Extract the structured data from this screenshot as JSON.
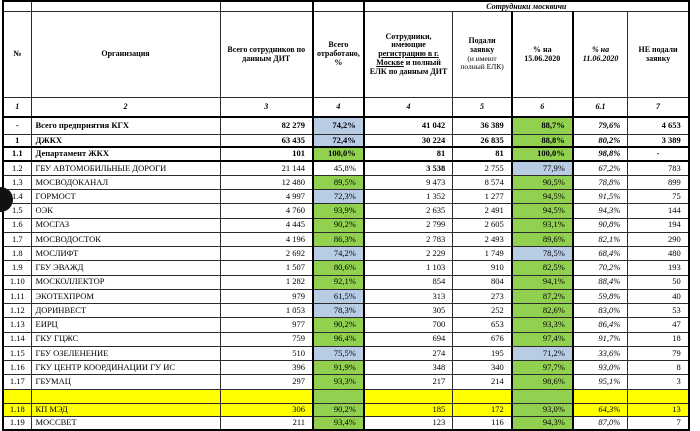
{
  "table": {
    "group_header": "Сотрудники москвичи",
    "columns": {
      "num": "№",
      "org": "Организация",
      "total": "Всего сотрудников по данным ДИТ",
      "worked": "Всего отработано, %",
      "msk_part1": "Сотрудники, имеющие ",
      "msk_underlined": "регистрацию в г. Москве",
      "msk_part2": " и полный ЕЛК по данным ДИТ",
      "applied_main": "Подали заявку",
      "applied_sub": "(и имеют полный ЕЛК)",
      "pct15": "% на 15.06.2020",
      "pct11": "% на 11.06.2020",
      "not_applied": "НЕ подали заявку"
    },
    "numbering": [
      "1",
      "2",
      "3",
      "4",
      "4",
      "5",
      "6",
      "6.1",
      "7"
    ],
    "rows": [
      {
        "num": "-",
        "org": "Всего предприятия КГХ",
        "total": "82 279",
        "worked": "74,2%",
        "worked_fill": "blue",
        "msk": "41 042",
        "applied": "36 389",
        "pct15": "88,7%",
        "pct15_fill": "green",
        "pct11": "79,6%",
        "not": "4 653",
        "bold": true,
        "height": 17
      },
      {
        "num": "1",
        "org": "ДЖКХ",
        "total": "63 435",
        "worked": "72,4%",
        "worked_fill": "blue",
        "msk": "30 224",
        "applied": "26 835",
        "pct15": "88,8%",
        "pct15_fill": "green",
        "pct11": "80,2%",
        "not": "3 389",
        "bold": true,
        "height": 13,
        "thick_bottom": true
      },
      {
        "num": "1.1",
        "org": "Департамент ЖКХ",
        "total": "101",
        "worked": "100,0%",
        "worked_fill": "green",
        "msk": "81",
        "applied": "81",
        "pct15": "100,0%",
        "pct15_fill": "green",
        "pct11": "98,8%",
        "not": "-",
        "bold": true,
        "height": 14,
        "thick_bottom": true
      },
      {
        "num": "1.2",
        "org": "ГБУ АВТОМОБИЛЬНЫЕ ДОРОГИ",
        "total": "21 144",
        "worked": "45,8%",
        "worked_fill": "",
        "msk": "3 538",
        "msk_bold": true,
        "applied": "2 755",
        "pct15": "77,9%",
        "pct15_fill": "blue",
        "pct11": "67,2%",
        "not": "783"
      },
      {
        "num": "1.3",
        "org": "МОСВОДОКАНАЛ",
        "total": "12 480",
        "worked": "89,5%",
        "worked_fill": "green",
        "msk": "9 473",
        "applied": "8 574",
        "pct15": "90,5%",
        "pct15_fill": "green",
        "pct11": "78,8%",
        "not": "899"
      },
      {
        "num": "1.4",
        "org": "ГОРМОСТ",
        "total": "4 997",
        "worked": "72,3%",
        "worked_fill": "blue",
        "msk": "1 352",
        "applied": "1 277",
        "pct15": "94,5%",
        "pct15_fill": "green",
        "pct11": "91,5%",
        "not": "75"
      },
      {
        "num": "1.5",
        "org": "ОЭК",
        "total": "4 760",
        "worked": "93,9%",
        "worked_fill": "green",
        "msk": "2 635",
        "applied": "2 491",
        "pct15": "94,5%",
        "pct15_fill": "green",
        "pct11": "94,3%",
        "not": "144"
      },
      {
        "num": "1.6",
        "org": "МОСГАЗ",
        "total": "4 445",
        "worked": "90,2%",
        "worked_fill": "green",
        "msk": "2 799",
        "applied": "2 605",
        "pct15": "93,1%",
        "pct15_fill": "green",
        "pct11": "90,8%",
        "not": "194"
      },
      {
        "num": "1.7",
        "org": "МОСВОДОСТОК",
        "total": "4 196",
        "worked": "86,3%",
        "worked_fill": "green",
        "msk": "2 783",
        "applied": "2 493",
        "pct15": "89,6%",
        "pct15_fill": "green",
        "pct11": "82,1%",
        "not": "290"
      },
      {
        "num": "1.8",
        "org": "МОСЛИФТ",
        "total": "2 692",
        "worked": "74,2%",
        "worked_fill": "blue",
        "msk": "2 229",
        "applied": "1 749",
        "pct15": "78,5%",
        "pct15_fill": "blue",
        "pct11": "68,4%",
        "not": "480"
      },
      {
        "num": "1.9",
        "org": "ГБУ ЭВАЖД",
        "total": "1 507",
        "worked": "80,6%",
        "worked_fill": "green",
        "msk": "1 103",
        "applied": "910",
        "pct15": "82,5%",
        "pct15_fill": "green",
        "pct11": "70,2%",
        "not": "193"
      },
      {
        "num": "1.10",
        "org": "МОСКОЛЛЕКТОР",
        "total": "1 282",
        "worked": "92,1%",
        "worked_fill": "green",
        "msk": "854",
        "applied": "804",
        "pct15": "94,1%",
        "pct15_fill": "green",
        "pct11": "88,4%",
        "not": "50"
      },
      {
        "num": "1.11",
        "org": "ЭКОТЕХПРОМ",
        "total": "979",
        "worked": "61,5%",
        "worked_fill": "blue",
        "msk": "313",
        "applied": "273",
        "pct15": "87,2%",
        "pct15_fill": "green",
        "pct11": "59,8%",
        "not": "40"
      },
      {
        "num": "1.12",
        "org": "ДОРИНВЕСТ",
        "total": "1 053",
        "worked": "78,3%",
        "worked_fill": "blue",
        "msk": "305",
        "applied": "252",
        "pct15": "82,6%",
        "pct15_fill": "green",
        "pct11": "83,0%",
        "not": "53"
      },
      {
        "num": "1.13",
        "org": "ЕИРЦ",
        "total": "977",
        "worked": "90,2%",
        "worked_fill": "green",
        "msk": "700",
        "applied": "653",
        "pct15": "93,3%",
        "pct15_fill": "green",
        "pct11": "86,4%",
        "not": "47"
      },
      {
        "num": "1.14",
        "org": "ГКУ ГЦЖС",
        "total": "759",
        "worked": "96,4%",
        "worked_fill": "green",
        "msk": "694",
        "applied": "676",
        "pct15": "97,4%",
        "pct15_fill": "green",
        "pct11": "91,7%",
        "not": "18"
      },
      {
        "num": "1.15",
        "org": "ГБУ ОЗЕЛЕНЕНИЕ",
        "total": "510",
        "worked": "75,5%",
        "worked_fill": "blue",
        "msk": "274",
        "applied": "195",
        "pct15": "71,2%",
        "pct15_fill": "blue",
        "pct11": "33,6%",
        "not": "79"
      },
      {
        "num": "1.16",
        "org": "ГКУ ЦЕНТР КООРДИНАЦИИ ГУ ИС",
        "total": "396",
        "worked": "91,9%",
        "worked_fill": "green",
        "msk": "348",
        "applied": "340",
        "pct15": "97,7%",
        "pct15_fill": "green",
        "pct11": "93,0%",
        "not": "8"
      },
      {
        "num": "1.17",
        "org": "ГБУМАЦ",
        "total": "297",
        "worked": "93,3%",
        "worked_fill": "green",
        "msk": "217",
        "applied": "214",
        "pct15": "98,6%",
        "pct15_fill": "green",
        "pct11": "95,1%",
        "not": "3"
      },
      {
        "num": "",
        "org": "",
        "total": "",
        "worked": "",
        "worked_fill": "green",
        "msk": "",
        "applied": "",
        "pct15": "",
        "pct15_fill": "green",
        "pct11": "",
        "not": "",
        "row_fill": "yellow",
        "height": 14
      },
      {
        "num": "1.18",
        "org": "КП МЭД",
        "total": "306",
        "worked": "90,2%",
        "worked_fill": "green",
        "msk": "185",
        "applied": "172",
        "pct15": "93,0%",
        "pct15_fill": "green",
        "pct11": "64,3%",
        "not": "13",
        "row_fill": "yellow",
        "height": 13
      },
      {
        "num": "1.19",
        "org": "МОССВЕТ",
        "total": "211",
        "worked": "93,4%",
        "worked_fill": "green",
        "msk": "123",
        "applied": "116",
        "pct15": "94,3%",
        "pct15_fill": "green",
        "pct11": "87,0%",
        "not": "7",
        "height": 14
      }
    ]
  },
  "colors": {
    "fill_green": "#92d050",
    "fill_blue": "#b8cce4",
    "fill_yellow": "#ffff00"
  }
}
